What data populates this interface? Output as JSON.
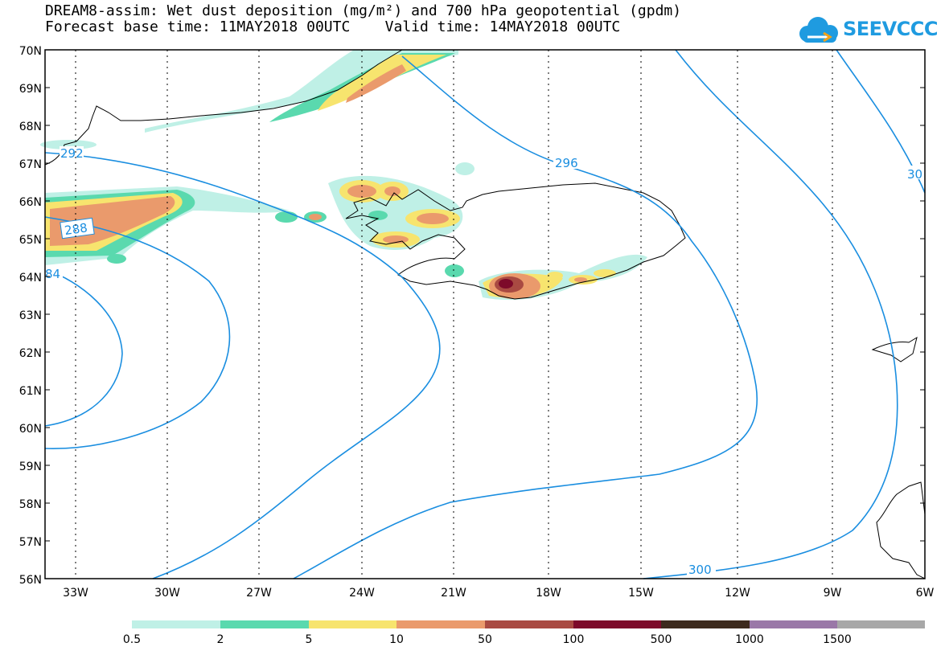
{
  "header": {
    "line1": "DREAM8-assim: Wet dust deposition (mg/m²) and 700 hPa geopotential (gpdm)",
    "line2": "Forecast base time: 11MAY2018 00UTC    Valid time: 14MAY2018 00UTC"
  },
  "logo": {
    "text": "SEEVCCC",
    "color": "#1f9be0"
  },
  "map": {
    "lat_labels": [
      "70N",
      "69N",
      "68N",
      "67N",
      "66N",
      "65N",
      "64N",
      "63N",
      "62N",
      "61N",
      "60N",
      "59N",
      "58N",
      "57N",
      "56N"
    ],
    "lon_labels": [
      "33W",
      "30W",
      "27W",
      "24W",
      "21W",
      "18W",
      "15W",
      "12W",
      "9W",
      "6W"
    ],
    "contour_labels": [
      "292",
      "288",
      "84",
      "296",
      "300",
      "30"
    ],
    "contour_color": "#1a8ee0"
  },
  "legend": {
    "colors": [
      "#bff0e6",
      "#5ad9ae",
      "#f7e46e",
      "#ea9a6c",
      "#a94a42",
      "#7d0a2a",
      "#3d2a1d",
      "#9a78a8",
      "#a8a8a8"
    ],
    "labels": [
      "0.5",
      "2",
      "5",
      "10",
      "50",
      "100",
      "500",
      "1000",
      "1500"
    ]
  }
}
